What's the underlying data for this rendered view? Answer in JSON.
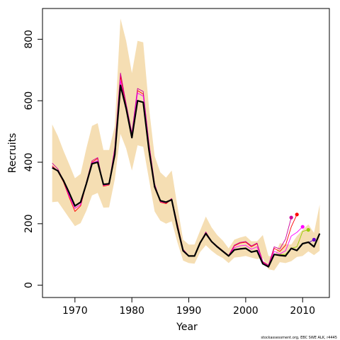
{
  "chart_data": {
    "type": "line",
    "xlabel": "Year",
    "ylabel": "Recruits",
    "xlim": [
      1964.3,
      2014.7
    ],
    "ylim": [
      -40,
      900
    ],
    "xticks": [
      1970,
      1980,
      1990,
      2000,
      2010
    ],
    "yticks": [
      0,
      200,
      400,
      600,
      800
    ],
    "grid": false,
    "credit": "stockassessment.org, EBC SWE ALK, r4445",
    "colors": {
      "band": "#f5deb3",
      "main": "#000000",
      "retro": [
        "#ff0000",
        "#cc0099",
        "#ff00ff",
        "#99cc00",
        "#6600cc",
        "#ff1493"
      ]
    },
    "band": {
      "x": [
        1966,
        1967,
        1968,
        1969,
        1970,
        1971,
        1972,
        1973,
        1974,
        1975,
        1976,
        1977,
        1978,
        1979,
        1980,
        1981,
        1982,
        1983,
        1984,
        1985,
        1986,
        1987,
        1988,
        1989,
        1990,
        1991,
        1992,
        1993,
        1994,
        1995,
        1996,
        1997,
        1998,
        1999,
        2000,
        2001,
        2002,
        2003,
        2004,
        2005,
        2006,
        2007,
        2008,
        2009,
        2010,
        2011,
        2012,
        2013
      ],
      "lower": [
        270,
        272,
        245,
        218,
        192,
        202,
        242,
        292,
        300,
        252,
        253,
        345,
        492,
        445,
        373,
        455,
        450,
        345,
        240,
        210,
        200,
        208,
        140,
        80,
        72,
        70,
        108,
        130,
        112,
        98,
        88,
        72,
        90,
        92,
        95,
        90,
        85,
        88,
        52,
        48,
        75,
        72,
        78,
        92,
        95,
        110,
        98,
        112
      ],
      "upper": [
        523,
        485,
        437,
        393,
        348,
        362,
        445,
        518,
        527,
        440,
        440,
        518,
        867,
        795,
        690,
        795,
        790,
        578,
        420,
        367,
        350,
        373,
        258,
        148,
        132,
        132,
        178,
        223,
        188,
        163,
        145,
        120,
        148,
        155,
        160,
        143,
        143,
        163,
        95,
        93,
        137,
        133,
        132,
        160,
        180,
        198,
        170,
        262
      ]
    },
    "series": [
      {
        "color": "#000000",
        "x": [
          1966,
          1967,
          1968,
          1969,
          1970,
          1971,
          1972,
          1973,
          1974,
          1975,
          1976,
          1977,
          1978,
          1979,
          1980,
          1981,
          1982,
          1983,
          1984,
          1985,
          1986,
          1987,
          1988,
          1989,
          1990,
          1991,
          1992,
          1993,
          1994,
          1995,
          1996,
          1997,
          1998,
          1999,
          2000,
          2001,
          2002,
          2003,
          2004,
          2005,
          2006,
          2007,
          2008,
          2009,
          2010,
          2011,
          2012,
          2013
        ],
        "y": [
          382,
          372,
          340,
          300,
          258,
          270,
          330,
          395,
          400,
          328,
          330,
          425,
          650,
          575,
          480,
          600,
          595,
          440,
          320,
          275,
          270,
          278,
          190,
          112,
          95,
          95,
          138,
          168,
          142,
          125,
          110,
          95,
          115,
          118,
          120,
          108,
          112,
          70,
          60,
          100,
          97,
          95,
          120,
          113,
          135,
          140,
          125,
          168
        ]
      },
      {
        "color": "#ff0000",
        "x": [
          1966,
          1967,
          1968,
          1969,
          1970,
          1971,
          1972,
          1973,
          1974,
          1975,
          1976,
          1977,
          1978,
          1979,
          1980,
          1981,
          1982,
          1983,
          1984,
          1985,
          1986,
          1987,
          1988,
          1989,
          1990,
          1991,
          1992,
          1993,
          1994,
          1995,
          1996,
          1997,
          1998,
          1999,
          2000,
          2001,
          2002,
          2003,
          2004,
          2005,
          2006,
          2007,
          2008,
          2009
        ],
        "y": [
          388,
          370,
          335,
          285,
          240,
          258,
          330,
          400,
          412,
          322,
          326,
          440,
          680,
          582,
          490,
          633,
          622,
          460,
          325,
          270,
          265,
          280,
          200,
          115,
          95,
          95,
          135,
          170,
          140,
          125,
          110,
          95,
          128,
          137,
          140,
          125,
          135,
          75,
          63,
          120,
          110,
          130,
          190,
          230
        ]
      },
      {
        "color": "#cc0099",
        "x": [
          1966,
          1967,
          1968,
          1969,
          1970,
          1971,
          1972,
          1973,
          1974,
          1975,
          1976,
          1977,
          1978,
          1979,
          1980,
          1981,
          1982,
          1983,
          1984,
          1985,
          1986,
          1987,
          1988,
          1989,
          1990,
          1991,
          1992,
          1993,
          1994,
          1995,
          1996,
          1997,
          1998,
          1999,
          2000,
          2001,
          2002,
          2003,
          2004,
          2005,
          2006,
          2007,
          2008
        ],
        "y": [
          397,
          378,
          340,
          290,
          250,
          262,
          335,
          405,
          415,
          325,
          330,
          448,
          690,
          590,
          495,
          640,
          630,
          462,
          330,
          272,
          268,
          282,
          198,
          117,
          96,
          96,
          138,
          173,
          143,
          127,
          112,
          97,
          130,
          139,
          142,
          128,
          137,
          77,
          65,
          125,
          118,
          150,
          220
        ]
      },
      {
        "color": "#ff00ff",
        "x": [
          1966,
          1967,
          1968,
          1969,
          1970,
          1971,
          1972,
          1973,
          1974,
          1975,
          1976,
          1977,
          1978,
          1979,
          1980,
          1981,
          1982,
          1983,
          1984,
          1985,
          1986,
          1987,
          1988,
          1989,
          1990,
          1991,
          1992,
          1993,
          1994,
          1995,
          1996,
          1997,
          1998,
          1999,
          2000,
          2001,
          2002,
          2003,
          2004,
          2005,
          2006,
          2007,
          2008,
          2009,
          2010
        ],
        "y": [
          385,
          370,
          338,
          290,
          250,
          262,
          330,
          398,
          405,
          325,
          328,
          435,
          665,
          578,
          485,
          625,
          615,
          452,
          322,
          272,
          268,
          278,
          195,
          114,
          95,
          95,
          136,
          170,
          141,
          125,
          110,
          95,
          122,
          128,
          130,
          117,
          125,
          73,
          62,
          110,
          102,
          112,
          160,
          172,
          190
        ]
      },
      {
        "color": "#99cc00",
        "x": [
          2006,
          2007,
          2008,
          2009,
          2010,
          2011
        ],
        "y": [
          100,
          100,
          120,
          125,
          175,
          180
        ]
      },
      {
        "color": "#6600cc",
        "x": [
          2006,
          2007,
          2008,
          2009,
          2010,
          2011,
          2012
        ],
        "y": [
          97,
          95,
          118,
          112,
          135,
          138,
          148
        ]
      }
    ],
    "endpoints": [
      {
        "x": 2008,
        "y": 220,
        "color": "#cc0099"
      },
      {
        "x": 2009,
        "y": 230,
        "color": "#ff0000"
      },
      {
        "x": 2010,
        "y": 190,
        "color": "#ff00ff"
      },
      {
        "x": 2011,
        "y": 180,
        "color": "#99cc00"
      },
      {
        "x": 2012,
        "y": 148,
        "color": "#6600cc"
      }
    ]
  }
}
